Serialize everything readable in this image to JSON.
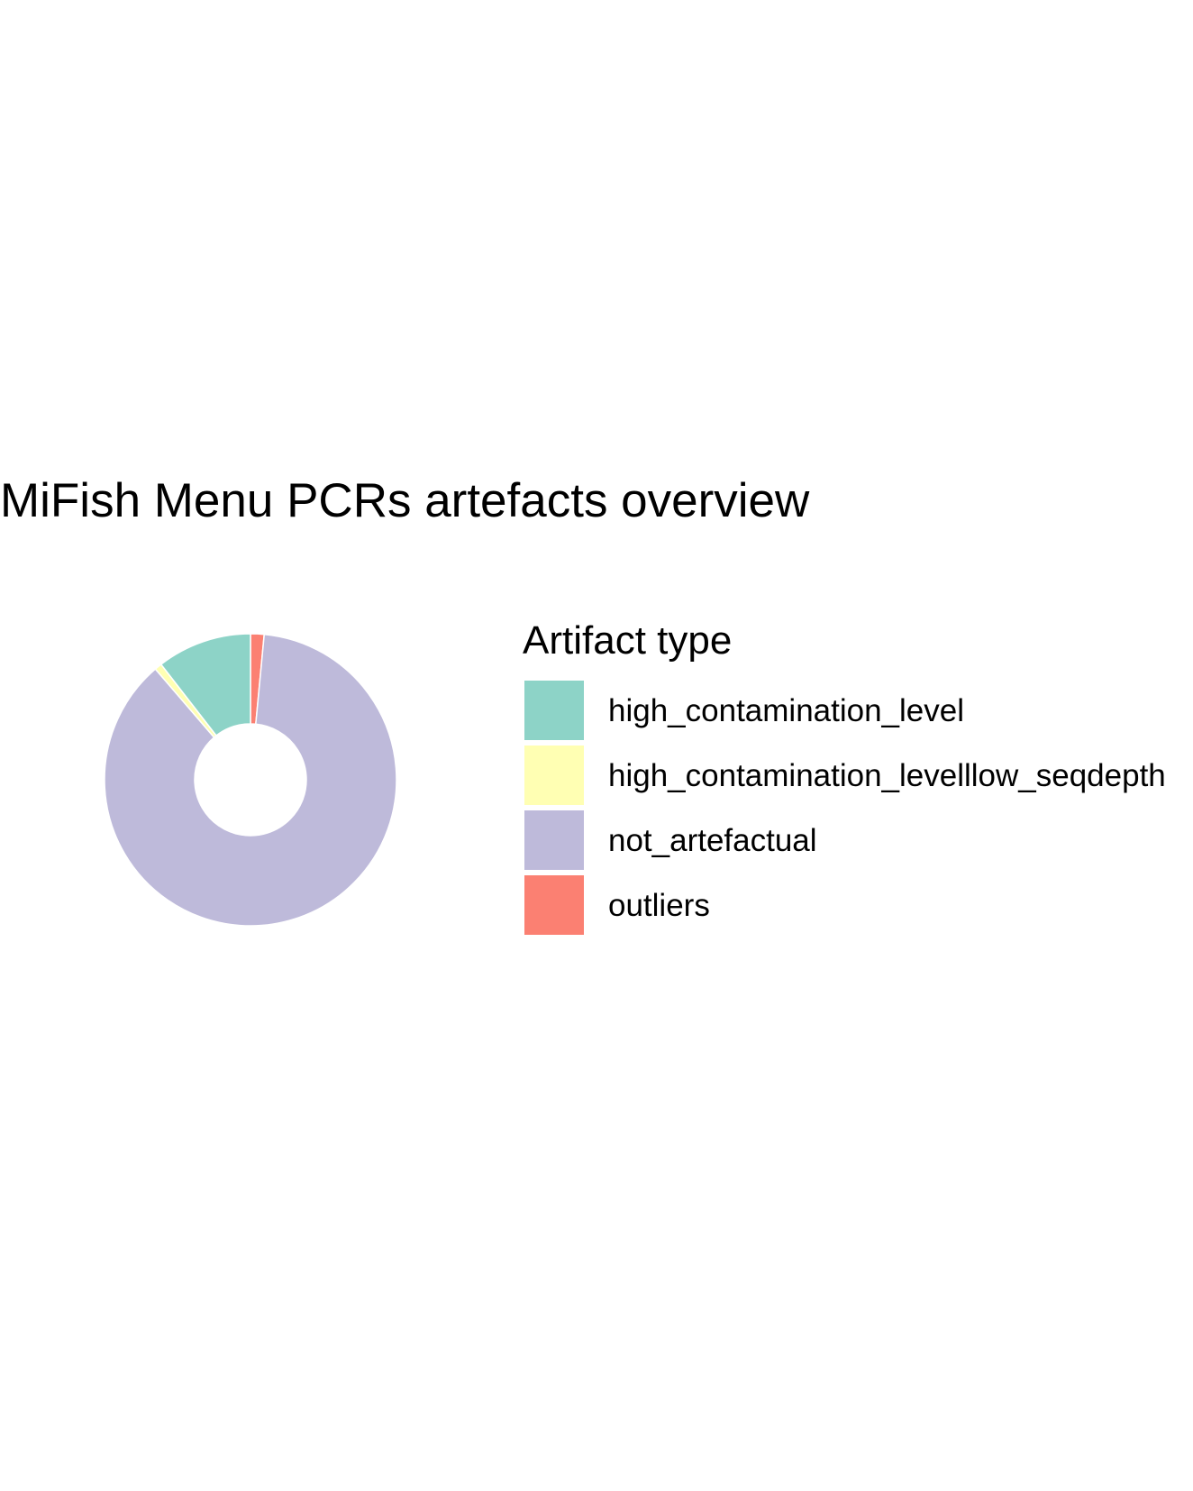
{
  "chart_data": {
    "type": "pie",
    "variant": "donut",
    "title": "MiFish Menu PCRs artefacts overview",
    "legend": {
      "title": "Artifact type",
      "placement": "right"
    },
    "categories": [
      "high_contamination_level",
      "high_contamination_levelllow_seqdepth",
      "not_artefactual",
      "outliers"
    ],
    "values": [
      10.5,
      0.8,
      87.2,
      1.5
    ],
    "colors": [
      "#8DD3C7",
      "#FFFFB3",
      "#BEBADA",
      "#FB8072"
    ],
    "slice_order": [
      "outliers",
      "not_artefactual",
      "high_contamination_levelllow_seqdepth",
      "high_contamination_level"
    ],
    "direction": "clockwise",
    "start": "top"
  }
}
